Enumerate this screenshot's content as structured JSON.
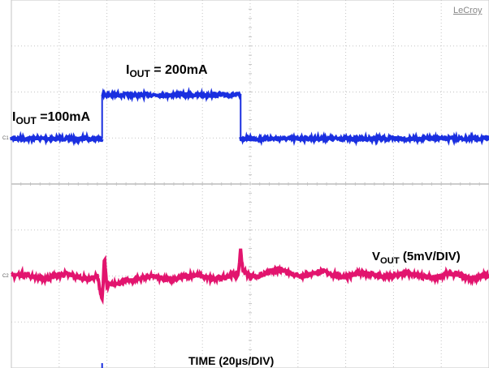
{
  "brand": "LeCroy",
  "channel_markers": {
    "c1": "C1",
    "c2": "C2"
  },
  "labels": {
    "iout_high": {
      "main": "I",
      "sub": "OUT",
      "rest": " = 200mA"
    },
    "iout_low": {
      "main": "I",
      "sub": "OUT",
      "rest": " =100mA"
    },
    "vout": {
      "main": "V",
      "sub": "OUT",
      "rest": " (5mV/DIV)"
    },
    "time": "TIME (20µs/DIV)"
  },
  "colors": {
    "iout_trace": "#1a2fe0",
    "vout_trace": "#e2146e",
    "grid": "#c4c4c4",
    "divider": "#9a9a9a"
  },
  "chart_data": {
    "type": "line",
    "title": "",
    "grid": true,
    "x_divisions": 10,
    "y_divisions": 8,
    "x_unit": "µs",
    "x_per_div": 20,
    "series": [
      {
        "name": "IOUT",
        "x": [
          0,
          38,
          38,
          96,
          96,
          200
        ],
        "y": [
          100,
          100,
          200,
          200,
          100,
          100
        ],
        "unit": "mA"
      },
      {
        "name": "VOUT",
        "x": [
          0,
          36,
          38,
          39,
          40,
          48,
          60,
          95,
          96,
          97,
          100,
          110,
          140,
          200
        ],
        "y": [
          0,
          0,
          -3,
          2,
          -1.5,
          -0.3,
          -0.2,
          0,
          3,
          0.5,
          0.2,
          0.5,
          0.2,
          0
        ],
        "unit": "mV (AC)",
        "scale": "5mV/DIV"
      }
    ]
  }
}
